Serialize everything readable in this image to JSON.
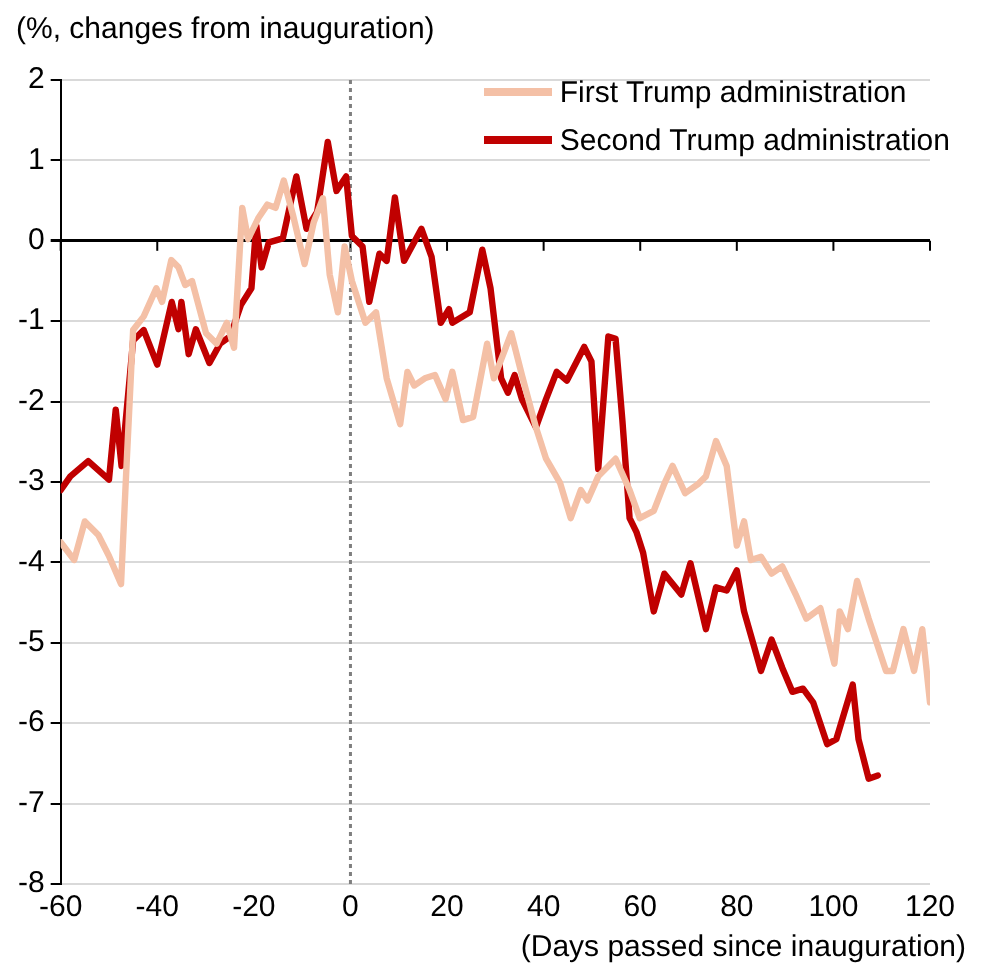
{
  "chart_data": {
    "type": "line",
    "ylabel": "(%, changes from inauguration)",
    "xlabel": "(Days passed since inauguration)",
    "xlim": [
      -60,
      120
    ],
    "xticks": [
      -60,
      -40,
      -20,
      0,
      20,
      40,
      60,
      80,
      100,
      120
    ],
    "ylim": [
      -8,
      2
    ],
    "yticks": [
      -8,
      -7,
      -6,
      -5,
      -4,
      -3,
      -2,
      -1,
      0,
      1,
      2
    ],
    "grid": "y",
    "legend": "top right",
    "marker": "none",
    "line_style": "solid",
    "ref_lines": [
      {
        "axis": "x",
        "value": 0,
        "color": "#7f7f7f",
        "line_style": "dotted"
      }
    ],
    "series": [
      {
        "name": "First Trump administration",
        "color": "#f4c0a6",
        "x": [
          -60,
          -57.2,
          -55,
          -52.2,
          -50,
          -47.5,
          -46.4,
          -45,
          -42.8,
          -40.2,
          -39,
          -37.1,
          -35.6,
          -34.2,
          -32.8,
          -29.9,
          -27.7,
          -25.6,
          -24.1,
          -22.4,
          -21.2,
          -19.1,
          -17.2,
          -15.5,
          -13.8,
          -11.9,
          -9.5,
          -7.6,
          -5.7,
          -4.3,
          -2.6,
          -1.2,
          0.3,
          3.1,
          5.3,
          7.5,
          10.3,
          11.8,
          13.2,
          15.4,
          17.5,
          19.7,
          21.1,
          23.3,
          25.4,
          28.3,
          29.7,
          33.3,
          35.5,
          38.4,
          40.5,
          43.4,
          45.6,
          47.7,
          49.1,
          51.3,
          54.9,
          57.8,
          59.9,
          62.8,
          65,
          66.7,
          69.3,
          72.1,
          73.6,
          75.7,
          77.9,
          80,
          81.5,
          82.9,
          85,
          87.2,
          89.4,
          92.2,
          94.4,
          97.3,
          100.2,
          101.3,
          103,
          104.9,
          107.3,
          110.9,
          112.3,
          114.5,
          116.7,
          118.4,
          120
        ],
        "values": [
          -3.75,
          -3.97,
          -3.49,
          -3.66,
          -3.92,
          -4.27,
          -2.84,
          -1.11,
          -0.94,
          -0.59,
          -0.76,
          -0.24,
          -0.33,
          -0.55,
          -0.5,
          -1.15,
          -1.28,
          -1.02,
          -1.33,
          0.41,
          0.02,
          0.28,
          0.45,
          0.41,
          0.75,
          0.32,
          -0.29,
          0.23,
          0.53,
          -0.42,
          -0.89,
          -0.07,
          -0.5,
          -1.02,
          -0.89,
          -1.71,
          -2.28,
          -1.63,
          -1.8,
          -1.71,
          -1.67,
          -1.97,
          -1.63,
          -2.23,
          -2.19,
          -1.28,
          -1.71,
          -1.15,
          -1.67,
          -2.32,
          -2.71,
          -3.01,
          -3.45,
          -3.1,
          -3.23,
          -2.93,
          -2.71,
          -3.1,
          -3.45,
          -3.36,
          -3.02,
          -2.8,
          -3.14,
          -3.02,
          -2.93,
          -2.49,
          -2.8,
          -3.79,
          -3.49,
          -3.97,
          -3.93,
          -4.14,
          -4.05,
          -4.4,
          -4.7,
          -4.57,
          -5.26,
          -4.61,
          -4.83,
          -4.23,
          -4.7,
          -5.35,
          -5.35,
          -4.83,
          -5.35,
          -4.83,
          -5.74
        ]
      },
      {
        "name": "Second Trump administration",
        "color": "#c00000",
        "x": [
          -60,
          -58,
          -54.3,
          -50,
          -48.6,
          -47.4,
          -45,
          -42.8,
          -40,
          -37,
          -35.6,
          -35,
          -33.5,
          -32,
          -29.2,
          -27,
          -24.9,
          -22.7,
          -20.5,
          -19.5,
          -18.4,
          -16.9,
          -14,
          -11.2,
          -9.1,
          -6.9,
          -4.7,
          -2.9,
          -0.9,
          0.3,
          2.5,
          3.9,
          6,
          7.5,
          9.2,
          11.1,
          14.7,
          16.8,
          18.7,
          20.4,
          21.1,
          24.7,
          27.3,
          29,
          31.2,
          32.6,
          34,
          35.5,
          38.4,
          40.5,
          42.7,
          44.8,
          48.4,
          49.9,
          51.3,
          53.4,
          54.9,
          56.3,
          57.8,
          59.2,
          60.6,
          62.8,
          65,
          68.5,
          70.4,
          73.6,
          75.7,
          77.9,
          80,
          81.5,
          83.6,
          85,
          87.2,
          89.4,
          91.5,
          93.7,
          95.8,
          98.7,
          100.6,
          104,
          105.2,
          107.3,
          109.2
        ],
        "values": [
          -3.1,
          -2.93,
          -2.74,
          -2.97,
          -2.1,
          -2.8,
          -1.24,
          -1.11,
          -1.54,
          -0.76,
          -1.1,
          -0.76,
          -1.41,
          -1.1,
          -1.52,
          -1.28,
          -1.19,
          -0.8,
          -0.59,
          0.19,
          -0.33,
          -0.02,
          0.03,
          0.8,
          0.15,
          0.36,
          1.23,
          0.62,
          0.8,
          0.06,
          -0.07,
          -0.76,
          -0.16,
          -0.25,
          0.54,
          -0.25,
          0.15,
          -0.2,
          -1.02,
          -0.85,
          -1.02,
          -0.89,
          -0.11,
          -0.59,
          -1.71,
          -1.89,
          -1.67,
          -1.97,
          -2.32,
          -1.97,
          -1.63,
          -1.74,
          -1.32,
          -1.5,
          -2.84,
          -1.19,
          -1.22,
          -2.23,
          -3.45,
          -3.62,
          -3.88,
          -4.61,
          -4.14,
          -4.4,
          -4.01,
          -4.83,
          -4.31,
          -4.35,
          -4.1,
          -4.61,
          -5.05,
          -5.35,
          -4.96,
          -5.31,
          -5.61,
          -5.57,
          -5.74,
          -6.26,
          -6.2,
          -5.52,
          -6.2,
          -6.69,
          -6.65
        ]
      }
    ]
  }
}
